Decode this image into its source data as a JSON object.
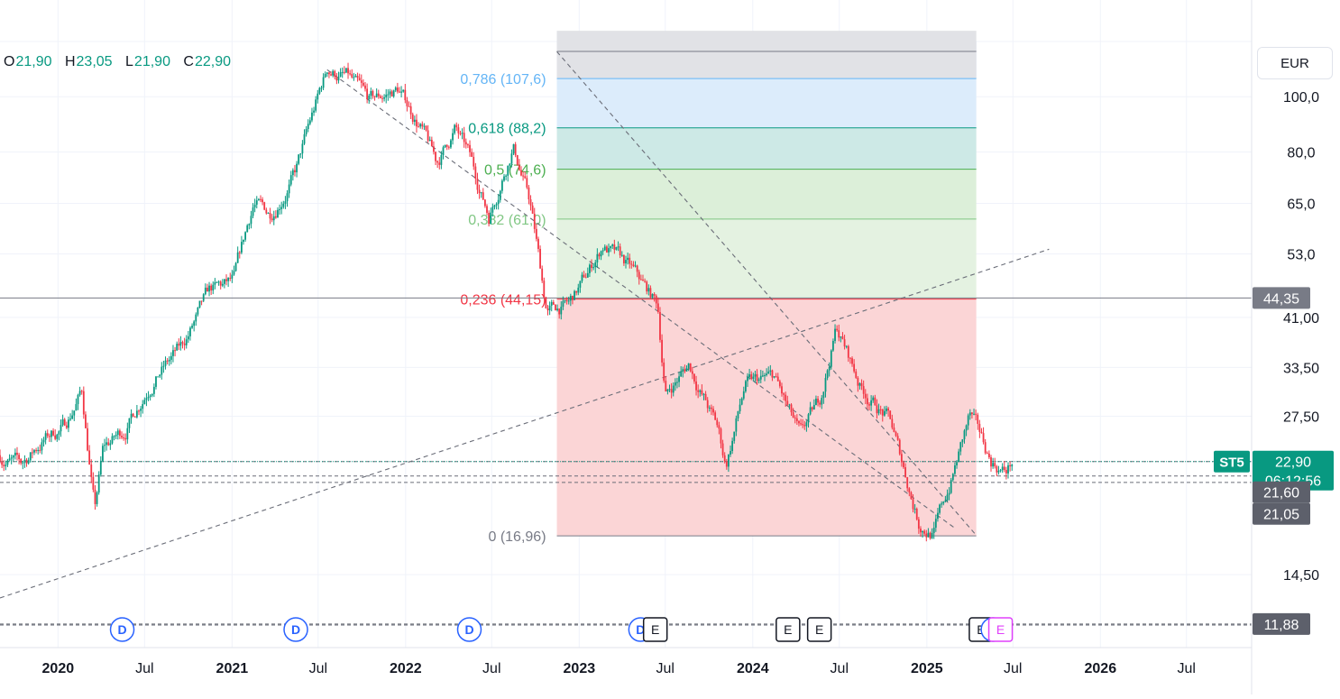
{
  "legend": {
    "open_label": "O",
    "open_value": "21,90",
    "high_label": "H",
    "high_value": "23,05",
    "low_label": "L",
    "low_value": "21,90",
    "close_label": "C",
    "close_value": "22,90"
  },
  "currency": "EUR",
  "colors": {
    "up": "#089981",
    "down": "#f23645",
    "axis_text": "#131722",
    "fib_786": "#64b5f6",
    "fib_618": "#089981",
    "fib_5": "#4caf50",
    "fib_382": "#81c784",
    "fib_236": "#f23645",
    "fib_0": "#787b86",
    "dividend": "#2962ff",
    "earnings": "#131722",
    "earnings_upcoming": "#e040fb",
    "price_tag_gray": "#787b86",
    "price_tag_dark": "#5d606b"
  },
  "chart_data": {
    "type": "candlestick",
    "symbol": "ST5",
    "y_scale": "log",
    "ylim": [
      10.8,
      125
    ],
    "x_range": [
      "2019-09-01",
      "2026-11-15"
    ],
    "y_ticks": [
      "100,0",
      "80,0",
      "65,0",
      "53,0",
      "41,00",
      "33,50",
      "27,50",
      "14,50"
    ],
    "x_ticks": [
      {
        "date": "2020-01-01",
        "label": "2020",
        "bold": true
      },
      {
        "date": "2020-07-01",
        "label": "Jul",
        "bold": false
      },
      {
        "date": "2021-01-01",
        "label": "2021",
        "bold": true
      },
      {
        "date": "2021-07-01",
        "label": "Jul",
        "bold": false
      },
      {
        "date": "2022-01-01",
        "label": "2022",
        "bold": true
      },
      {
        "date": "2022-07-01",
        "label": "Jul",
        "bold": false
      },
      {
        "date": "2023-01-01",
        "label": "2023",
        "bold": true
      },
      {
        "date": "2023-07-01",
        "label": "Jul",
        "bold": false
      },
      {
        "date": "2024-01-01",
        "label": "2024",
        "bold": true
      },
      {
        "date": "2024-07-01",
        "label": "Jul",
        "bold": false
      },
      {
        "date": "2025-01-01",
        "label": "2025",
        "bold": true
      },
      {
        "date": "2025-07-01",
        "label": "Jul",
        "bold": false
      },
      {
        "date": "2026-01-01",
        "label": "2026",
        "bold": true
      },
      {
        "date": "2026-07-01",
        "label": "Jul",
        "bold": false
      }
    ],
    "price_path": [
      [
        "2019-09-01",
        23.5
      ],
      [
        "2019-10-15",
        22.5
      ],
      [
        "2019-12-01",
        25.0
      ],
      [
        "2020-01-15",
        26.5
      ],
      [
        "2020-02-20",
        30.5
      ],
      [
        "2020-03-18",
        18.8
      ],
      [
        "2020-04-05",
        24.0
      ],
      [
        "2020-05-20",
        26.0
      ],
      [
        "2020-07-15",
        32.0
      ],
      [
        "2020-09-15",
        36.0
      ],
      [
        "2020-11-15",
        45.0
      ],
      [
        "2021-01-05",
        47.0
      ],
      [
        "2021-02-15",
        65.0
      ],
      [
        "2021-03-20",
        62.0
      ],
      [
        "2021-05-15",
        74.0
      ],
      [
        "2021-06-15",
        90.0
      ],
      [
        "2021-07-20",
        111.5
      ],
      [
        "2021-09-01",
        108.0
      ],
      [
        "2021-10-15",
        97.0
      ],
      [
        "2021-12-15",
        103.0
      ],
      [
        "2022-02-01",
        89.0
      ],
      [
        "2022-03-07",
        76.0
      ],
      [
        "2022-04-15",
        88.0
      ],
      [
        "2022-05-15",
        78.0
      ],
      [
        "2022-06-25",
        62.0
      ],
      [
        "2022-08-15",
        83.0
      ],
      [
        "2022-09-20",
        65.0
      ],
      [
        "2022-10-25",
        42.0
      ],
      [
        "2022-12-10",
        43.0
      ],
      [
        "2023-01-15",
        48.0
      ],
      [
        "2023-02-20",
        55.0
      ],
      [
        "2023-04-15",
        50.0
      ],
      [
        "2023-06-15",
        43.0
      ],
      [
        "2023-07-01",
        30.0
      ],
      [
        "2023-08-20",
        34.0
      ],
      [
        "2023-10-20",
        26.0
      ],
      [
        "2023-11-05",
        22.5
      ],
      [
        "2023-12-15",
        31.0
      ],
      [
        "2024-02-15",
        32.0
      ],
      [
        "2024-04-10",
        25.0
      ],
      [
        "2024-05-20",
        29.0
      ],
      [
        "2024-06-25",
        39.5
      ],
      [
        "2024-08-15",
        31.0
      ],
      [
        "2024-10-15",
        27.0
      ],
      [
        "2024-12-15",
        18.0
      ],
      [
        "2025-01-15",
        17.2
      ],
      [
        "2025-02-20",
        21.0
      ],
      [
        "2025-04-01",
        27.5
      ],
      [
        "2025-05-15",
        23.0
      ],
      [
        "2025-06-15",
        22.0
      ],
      [
        "2025-06-30",
        22.9
      ]
    ],
    "fibonacci": {
      "start_date": "2022-11-15",
      "end_date": "2025-04-15",
      "levels": [
        {
          "ratio": "0,786",
          "value": 107.6,
          "label": "0,786 (107,6)",
          "color_key": "fib_786"
        },
        {
          "ratio": "0,618",
          "value": 88.2,
          "label": "0,618 (88,2)",
          "color_key": "fib_618"
        },
        {
          "ratio": "0,5",
          "value": 74.6,
          "label": "0,5 (74,6)",
          "color_key": "fib_5"
        },
        {
          "ratio": "0,382",
          "value": 61.0,
          "label": "0,382 (61,0)",
          "color_key": "fib_382"
        },
        {
          "ratio": "0,236",
          "value": 44.15,
          "label": "0,236 (44,15)",
          "color_key": "fib_236"
        },
        {
          "ratio": "0",
          "value": 16.96,
          "label": "0 (16,96)",
          "color_key": "fib_0"
        }
      ]
    },
    "trendlines": [
      {
        "from": [
          "2019-09-01",
          13.2
        ],
        "to": [
          "2025-09-15",
          54.0
        ]
      },
      {
        "from": [
          "2021-07-20",
          111.5
        ],
        "to": [
          "2025-03-01",
          17.5
        ]
      },
      {
        "from": [
          "2022-11-15",
          120.0
        ],
        "to": [
          "2025-04-15",
          17.0
        ]
      }
    ],
    "horizontal_lines": [
      {
        "value": 44.35,
        "tag": "44,35"
      }
    ],
    "price_tags": [
      {
        "value": 22.9,
        "label": "22,90",
        "countdown": "06:12:56",
        "symbol": "ST5"
      },
      {
        "value": 21.6,
        "label": "21,60"
      },
      {
        "value": 21.05,
        "label": "21,05"
      },
      {
        "value": 11.88,
        "label": "11,88"
      }
    ],
    "events": [
      {
        "date": "2020-05-15",
        "type": "D",
        "label": "D"
      },
      {
        "date": "2021-05-15",
        "type": "D",
        "label": "D"
      },
      {
        "date": "2022-05-15",
        "type": "D",
        "label": "D"
      },
      {
        "date": "2023-05-10",
        "type": "D",
        "label": "D"
      },
      {
        "date": "2023-06-10",
        "type": "E",
        "label": "E"
      },
      {
        "date": "2024-03-15",
        "type": "E",
        "label": "E"
      },
      {
        "date": "2024-05-20",
        "type": "E",
        "label": "E"
      },
      {
        "date": "2025-04-25",
        "type": "E",
        "label": "E"
      },
      {
        "date": "2025-05-20",
        "type": "D",
        "label": "D"
      },
      {
        "date": "2025-06-05",
        "type": "E",
        "label": "E",
        "upcoming": true
      }
    ]
  }
}
